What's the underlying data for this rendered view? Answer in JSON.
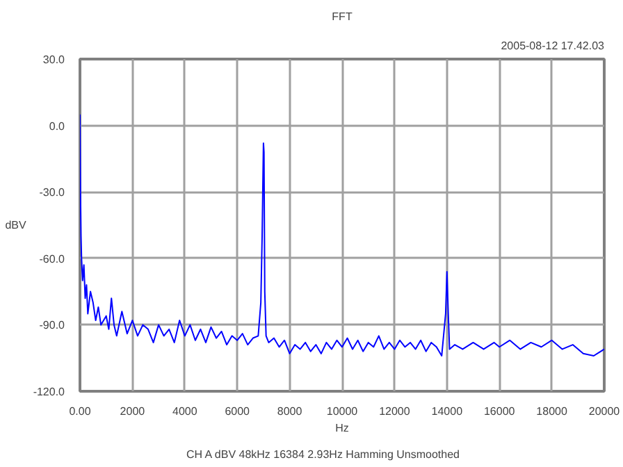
{
  "chart_data": {
    "type": "line",
    "title": "FFT",
    "xlabel": "Hz",
    "ylabel": "dBV",
    "annotations": [
      "2005-08-12 17.42.03",
      "CH A   dBV   48kHz   16384   2.93Hz   Hamming   Unsmoothed"
    ],
    "xlim": [
      0,
      20000
    ],
    "ylim": [
      -120,
      30
    ],
    "xticks": [
      {
        "value": 0,
        "label": "0.00"
      },
      2000,
      4000,
      6000,
      8000,
      10000,
      12000,
      14000,
      16000,
      18000,
      20000
    ],
    "yticks": [
      {
        "value": -120,
        "label": "-120.0"
      },
      {
        "value": -90,
        "label": "-90.0"
      },
      {
        "value": -60,
        "label": "-60.0"
      },
      {
        "value": -30,
        "label": "-30.0"
      },
      {
        "value": 0,
        "label": "0.0"
      },
      {
        "value": 30,
        "label": "30.0"
      }
    ],
    "grid": true,
    "marker": "none",
    "line_style": "solid",
    "series": [
      {
        "color": "#0000ff",
        "x": [
          0,
          20,
          40,
          60,
          100,
          150,
          200,
          250,
          300,
          400,
          500,
          600,
          700,
          800,
          1000,
          1100,
          1200,
          1300,
          1400,
          1600,
          1800,
          2000,
          2200,
          2400,
          2600,
          2800,
          3000,
          3200,
          3400,
          3600,
          3800,
          4000,
          4200,
          4400,
          4600,
          4800,
          5000,
          5200,
          5400,
          5600,
          5800,
          6000,
          6200,
          6400,
          6600,
          6800,
          6900,
          6950,
          7000,
          7020,
          7050,
          7100,
          7200,
          7400,
          7600,
          7800,
          8000,
          8200,
          8400,
          8600,
          8800,
          9000,
          9200,
          9400,
          9600,
          9800,
          10000,
          10200,
          10400,
          10600,
          10800,
          11000,
          11200,
          11400,
          11600,
          11800,
          12000,
          12200,
          12400,
          12600,
          12800,
          13000,
          13200,
          13400,
          13600,
          13800,
          13950,
          14000,
          14050,
          14100,
          14300,
          14600,
          15000,
          15400,
          15800,
          16000,
          16400,
          16800,
          17200,
          17600,
          18000,
          18400,
          18800,
          19200,
          19600,
          20000
        ],
        "values": [
          5,
          -30,
          -50,
          -60,
          -70,
          -63,
          -78,
          -72,
          -85,
          -75,
          -80,
          -88,
          -82,
          -90,
          -86,
          -92,
          -78,
          -90,
          -95,
          -84,
          -94,
          -88,
          -95,
          -90,
          -92,
          -98,
          -90,
          -95,
          -92,
          -98,
          -88,
          -95,
          -90,
          -97,
          -92,
          -98,
          -91,
          -96,
          -93,
          -99,
          -95,
          -97,
          -94,
          -99,
          -96,
          -95,
          -80,
          -50,
          -8,
          -12,
          -75,
          -95,
          -98,
          -96,
          -100,
          -97,
          -103,
          -99,
          -101,
          -98,
          -102,
          -99,
          -103,
          -98,
          -101,
          -97,
          -100,
          -96,
          -101,
          -97,
          -102,
          -98,
          -100,
          -95,
          -101,
          -98,
          -101,
          -97,
          -100,
          -98,
          -101,
          -97,
          -102,
          -98,
          -100,
          -104,
          -85,
          -66,
          -85,
          -101,
          -99,
          -101,
          -98,
          -101,
          -98,
          -100,
          -97,
          -101,
          -98,
          -100,
          -97,
          -101,
          -99,
          -103,
          -104,
          -101
        ]
      }
    ]
  }
}
